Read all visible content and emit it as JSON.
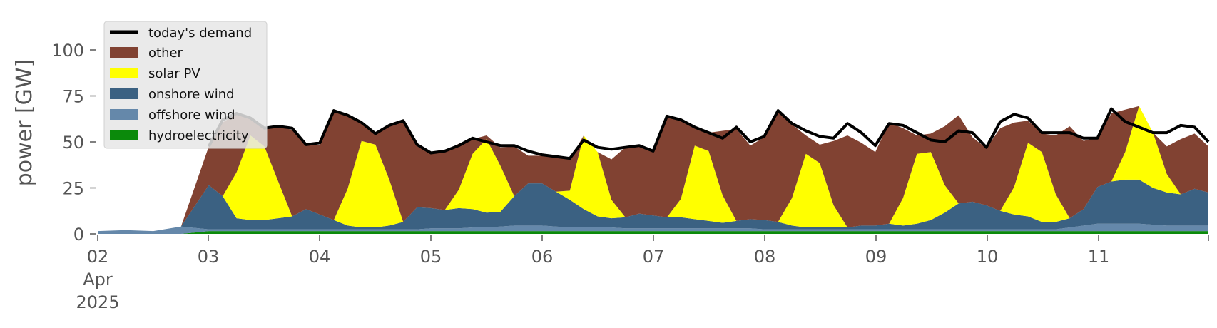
{
  "chart_data": {
    "type": "area",
    "ylabel": "power [GW]",
    "ylim": [
      0,
      120
    ],
    "yticks": [
      0,
      25,
      50,
      75,
      100
    ],
    "xlim": [
      "2025-04-02 00:00",
      "2025-04-11 23:59"
    ],
    "xticks": [
      {
        "date": "2025-04-02",
        "label": "02",
        "sublabels": [
          "Apr",
          "2025"
        ]
      },
      {
        "date": "2025-04-03",
        "label": "03"
      },
      {
        "date": "2025-04-04",
        "label": "04"
      },
      {
        "date": "2025-04-05",
        "label": "05"
      },
      {
        "date": "2025-04-06",
        "label": "06"
      },
      {
        "date": "2025-04-07",
        "label": "07"
      },
      {
        "date": "2025-04-08",
        "label": "08"
      },
      {
        "date": "2025-04-09",
        "label": "09"
      },
      {
        "date": "2025-04-10",
        "label": "10"
      },
      {
        "date": "2025-04-11",
        "label": "11"
      }
    ],
    "grid": false,
    "legend_position": "upper-left",
    "legend": [
      {
        "label": "today's demand",
        "kind": "line",
        "color": "#000000"
      },
      {
        "label": "other",
        "kind": "patch",
        "color": "#814232"
      },
      {
        "label": "solar PV",
        "kind": "patch",
        "color": "#ffff00"
      },
      {
        "label": "onshore wind",
        "kind": "patch",
        "color": "#3b6182"
      },
      {
        "label": "offshore wind",
        "kind": "patch",
        "color": "#6588aa"
      },
      {
        "label": "hydroelectricity",
        "kind": "patch",
        "color": "#0b8a0b"
      }
    ],
    "x": [
      "2025-04-02 00:00",
      "2025-04-02 06:00",
      "2025-04-02 12:00",
      "2025-04-02 18:00",
      "2025-04-03 00:00",
      "2025-04-03 03:00",
      "2025-04-03 06:00",
      "2025-04-03 09:00",
      "2025-04-03 12:00",
      "2025-04-03 15:00",
      "2025-04-03 18:00",
      "2025-04-03 21:00",
      "2025-04-04 00:00",
      "2025-04-04 03:00",
      "2025-04-04 06:00",
      "2025-04-04 09:00",
      "2025-04-04 12:00",
      "2025-04-04 15:00",
      "2025-04-04 18:00",
      "2025-04-04 21:00",
      "2025-04-05 00:00",
      "2025-04-05 03:00",
      "2025-04-05 06:00",
      "2025-04-05 09:00",
      "2025-04-05 12:00",
      "2025-04-05 15:00",
      "2025-04-05 18:00",
      "2025-04-05 21:00",
      "2025-04-06 00:00",
      "2025-04-06 03:00",
      "2025-04-06 06:00",
      "2025-04-06 09:00",
      "2025-04-06 12:00",
      "2025-04-06 15:00",
      "2025-04-06 18:00",
      "2025-04-06 21:00",
      "2025-04-07 00:00",
      "2025-04-07 03:00",
      "2025-04-07 06:00",
      "2025-04-07 09:00",
      "2025-04-07 12:00",
      "2025-04-07 15:00",
      "2025-04-07 18:00",
      "2025-04-07 21:00",
      "2025-04-08 00:00",
      "2025-04-08 03:00",
      "2025-04-08 06:00",
      "2025-04-08 09:00",
      "2025-04-08 12:00",
      "2025-04-08 15:00",
      "2025-04-08 18:00",
      "2025-04-08 21:00",
      "2025-04-09 00:00",
      "2025-04-09 03:00",
      "2025-04-09 06:00",
      "2025-04-09 09:00",
      "2025-04-09 12:00",
      "2025-04-09 15:00",
      "2025-04-09 18:00",
      "2025-04-09 21:00",
      "2025-04-10 00:00",
      "2025-04-10 03:00",
      "2025-04-10 06:00",
      "2025-04-10 09:00",
      "2025-04-10 12:00",
      "2025-04-10 15:00",
      "2025-04-10 18:00",
      "2025-04-10 21:00",
      "2025-04-11 00:00",
      "2025-04-11 03:00",
      "2025-04-11 06:00",
      "2025-04-11 09:00",
      "2025-04-11 12:00",
      "2025-04-11 15:00",
      "2025-04-11 18:00",
      "2025-04-11 21:00",
      "2025-04-11 23:59"
    ],
    "series": [
      {
        "name": "hydroelectricity",
        "color": "#0b8a0b",
        "values": [
          0,
          0,
          0,
          0,
          1.5,
          1.5,
          1.5,
          1.5,
          1.5,
          1.5,
          1.5,
          1.5,
          1.5,
          1.5,
          1.5,
          1.5,
          1.5,
          1.5,
          1.5,
          1.5,
          1.5,
          1.5,
          1.5,
          1.5,
          1.5,
          1.5,
          1.5,
          1.5,
          1.5,
          1.5,
          1.5,
          1.5,
          1.5,
          1.5,
          1.5,
          1.5,
          1.5,
          1.5,
          1.5,
          1.5,
          1.5,
          1.5,
          1.5,
          1.5,
          1.5,
          1.5,
          1.5,
          1.5,
          1.5,
          1.5,
          1.5,
          1.5,
          1.5,
          1.5,
          1.5,
          1.5,
          1.5,
          1.5,
          1.5,
          1.5,
          1.5,
          1.5,
          1.5,
          1.5,
          1.5,
          1.5,
          1.5,
          1.5,
          1.5,
          1.5,
          1.5,
          1.5,
          1.5,
          1.5,
          1.5,
          1.5,
          1.5
        ]
      },
      {
        "name": "offshore wind",
        "color": "#6588aa",
        "values": [
          1.5,
          2,
          1.5,
          4,
          1,
          1,
          1,
          1,
          1,
          1,
          1,
          1,
          1,
          1,
          1,
          1,
          1,
          1,
          1,
          1,
          1.5,
          1.5,
          1.5,
          2,
          2,
          2.5,
          3,
          3,
          3,
          2.5,
          2,
          2,
          2,
          2,
          1.5,
          1.5,
          1.5,
          1.5,
          1.5,
          1.5,
          1.5,
          1.5,
          1.5,
          1.5,
          1,
          1,
          1,
          1,
          1,
          1,
          1,
          1,
          1,
          1,
          1,
          1,
          1,
          1,
          1,
          1,
          1,
          1,
          1,
          1,
          1,
          1,
          2,
          3,
          4,
          4,
          4,
          4,
          3.5,
          3,
          3,
          3,
          3
        ]
      },
      {
        "name": "onshore wind",
        "color": "#3b6182",
        "values": [
          0,
          0,
          0,
          0,
          24,
          18,
          6,
          5,
          5,
          6,
          7,
          11,
          8,
          5,
          2,
          1,
          1,
          2,
          4,
          12,
          11,
          10,
          11,
          10,
          8,
          8,
          16,
          23,
          23,
          19,
          15,
          10,
          6,
          5,
          6,
          8,
          7,
          6,
          6,
          5,
          4,
          3,
          4,
          5,
          5,
          4,
          2,
          1,
          1,
          1,
          1,
          2,
          2,
          3,
          2,
          3,
          5,
          9,
          14,
          15,
          13,
          10,
          8,
          7,
          4,
          4,
          5,
          9,
          20,
          23,
          24,
          24,
          20,
          18,
          17,
          20,
          18
        ]
      },
      {
        "name": "solar PV",
        "color": "#ffff00",
        "values": [
          0,
          0,
          0,
          0,
          0,
          0,
          25,
          46,
          40,
          20,
          0,
          0,
          0,
          0,
          20,
          47,
          45,
          25,
          0,
          0,
          0,
          0,
          10,
          30,
          40,
          25,
          0,
          0,
          0,
          0,
          5,
          40,
          35,
          10,
          0,
          0,
          0,
          0,
          10,
          40,
          38,
          15,
          0,
          0,
          0,
          0,
          15,
          40,
          35,
          12,
          0,
          0,
          0,
          0,
          15,
          38,
          37,
          15,
          0,
          0,
          0,
          0,
          15,
          40,
          38,
          15,
          0,
          0,
          0,
          0,
          15,
          40,
          30,
          10,
          0,
          0,
          0
        ]
      },
      {
        "name": "other",
        "color": "#814232",
        "values": [
          0,
          0,
          0,
          0,
          21,
          40,
          32,
          10,
          10,
          30,
          47,
          35,
          38,
          60,
          40,
          11,
          6,
          30,
          55,
          33,
          30,
          32,
          25,
          8,
          2,
          10,
          27,
          15,
          15,
          19,
          17,
          0,
          0,
          22,
          38,
          37,
          35,
          55,
          43,
          10,
          10,
          35,
          50,
          40,
          45,
          60,
          40,
          10,
          10,
          35,
          50,
          45,
          40,
          55,
          38,
          10,
          10,
          32,
          48,
          35,
          31,
          45,
          35,
          12,
          10,
          32,
          50,
          37,
          27,
          37,
          23,
          0,
          0,
          15,
          30,
          30,
          25
        ]
      },
      {
        "name": "today's demand",
        "color": "#000000",
        "kind": "line",
        "values": [
          null,
          null,
          null,
          null,
          47.5,
          62,
          65.5,
          63,
          57.5,
          58.5,
          57.5,
          48.5,
          49.5,
          67,
          64.5,
          60.5,
          54.5,
          59,
          61.5,
          48.5,
          44,
          45,
          48,
          52,
          50,
          48,
          48,
          45,
          43,
          42,
          41,
          51,
          47,
          46,
          47,
          48,
          45,
          64,
          62,
          58,
          55,
          52,
          58,
          50,
          53,
          67,
          60,
          56,
          53,
          52,
          60,
          55,
          48,
          60,
          59,
          55,
          51,
          50,
          56,
          55,
          47,
          61,
          65,
          63,
          55,
          55,
          55,
          52,
          52,
          68,
          61,
          58,
          55,
          55,
          59,
          58,
          50
        ]
      }
    ]
  }
}
